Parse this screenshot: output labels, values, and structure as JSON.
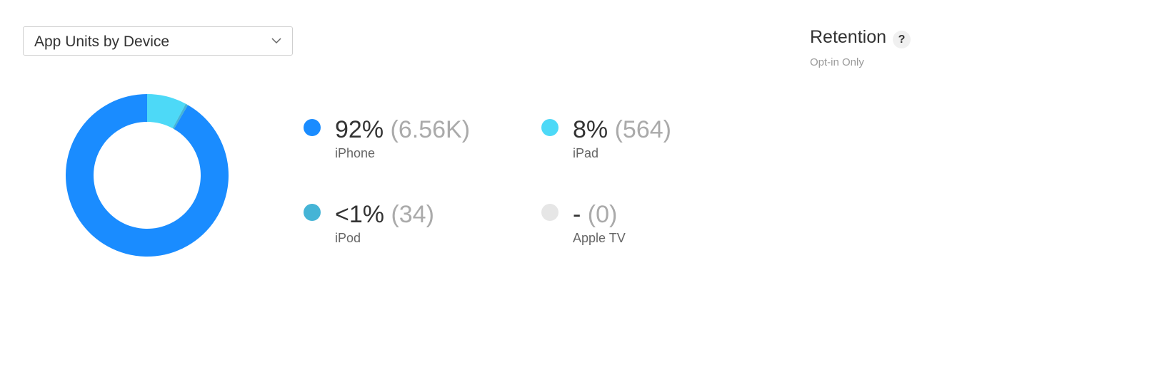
{
  "dropdown": {
    "selected": "App Units by Device",
    "icon": "chevron-down-icon"
  },
  "legend": {
    "items": [
      {
        "percent": "92%",
        "count": "(6.56K)",
        "label": "iPhone",
        "color": "#1a8cff"
      },
      {
        "percent": "8%",
        "count": "(564)",
        "label": "iPad",
        "color": "#4dd9f7"
      },
      {
        "percent": "<1%",
        "count": "(34)",
        "label": "iPod",
        "color": "#45b4d6"
      },
      {
        "percent": "-",
        "count": "(0)",
        "label": "Apple TV",
        "color": "#e6e6e6"
      }
    ]
  },
  "retention": {
    "title": "Retention",
    "subtitle": "Opt-in Only",
    "help_label": "?",
    "help_icon": "question-mark-icon"
  },
  "chart_data": {
    "type": "pie",
    "donut": true,
    "categories": [
      "iPhone",
      "iPad",
      "iPod",
      "Apple TV"
    ],
    "values": [
      6560,
      564,
      34,
      0
    ],
    "colors": [
      "#1a8cff",
      "#4dd9f7",
      "#45b4d6",
      "#e6e6e6"
    ]
  }
}
